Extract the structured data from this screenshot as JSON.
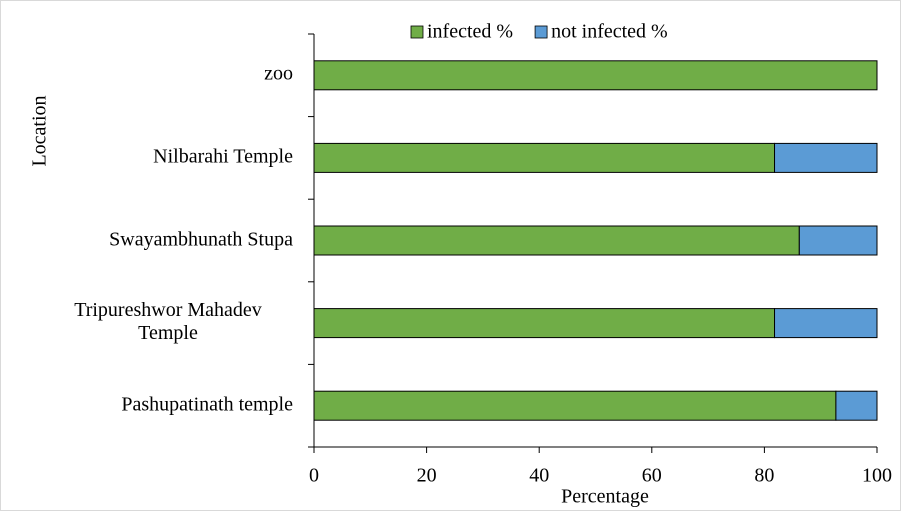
{
  "chart_data": {
    "type": "stacked_bar_horizontal",
    "x_label": "Percentage",
    "y_label": "Location",
    "categories": [
      "zoo",
      "Nilbarahi Temple",
      "Swayambhunath Stupa",
      "Tripureshwor Mahadev Temple",
      "Pashupatinath temple"
    ],
    "series": [
      {
        "name": "infected %",
        "color": "#70ad47",
        "values": [
          100,
          81.8,
          86.2,
          81.8,
          92.7
        ]
      },
      {
        "name": "not infected %",
        "color": "#5b9bd5",
        "values": [
          0,
          18.2,
          13.8,
          18.2,
          7.3
        ]
      }
    ],
    "xlim": [
      0,
      100
    ],
    "xticks": [
      0,
      20,
      40,
      60,
      80,
      100
    ],
    "legend": "top"
  }
}
